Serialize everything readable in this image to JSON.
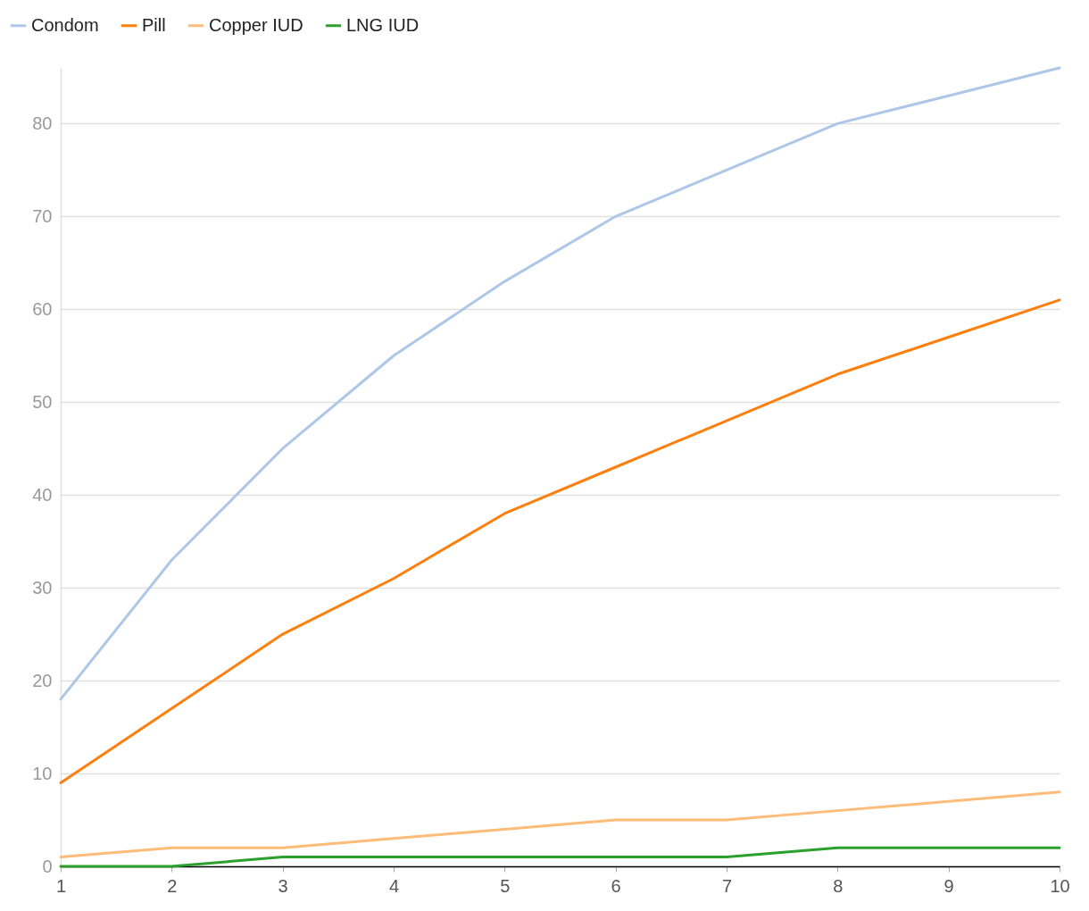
{
  "chart_data": {
    "type": "line",
    "x": [
      1,
      2,
      3,
      4,
      5,
      6,
      7,
      8,
      9,
      10
    ],
    "xlim": [
      1,
      10
    ],
    "xticks": [
      1,
      2,
      3,
      4,
      5,
      6,
      7,
      8,
      9,
      10
    ],
    "ylim": [
      0,
      86
    ],
    "yticks": [
      0,
      10,
      20,
      30,
      40,
      50,
      60,
      70,
      80
    ],
    "grid": "y",
    "legend": "top left",
    "line_style": "solid",
    "marker": "none",
    "series": [
      {
        "name": "Condom",
        "color": "#aec7e8",
        "values": [
          18,
          33,
          45,
          55,
          63,
          70,
          75,
          80,
          83,
          86
        ]
      },
      {
        "name": "Pill",
        "color": "#ff7f0e",
        "values": [
          9,
          17,
          25,
          31,
          38,
          43,
          48,
          53,
          57,
          61
        ]
      },
      {
        "name": "Copper IUD",
        "color": "#ffbb78",
        "values": [
          1,
          2,
          2,
          3,
          4,
          5,
          5,
          6,
          7,
          8
        ]
      },
      {
        "name": "LNG IUD",
        "color": "#2ca02c",
        "values": [
          0,
          0,
          1,
          1,
          1,
          1,
          1,
          2,
          2,
          2
        ]
      }
    ]
  }
}
